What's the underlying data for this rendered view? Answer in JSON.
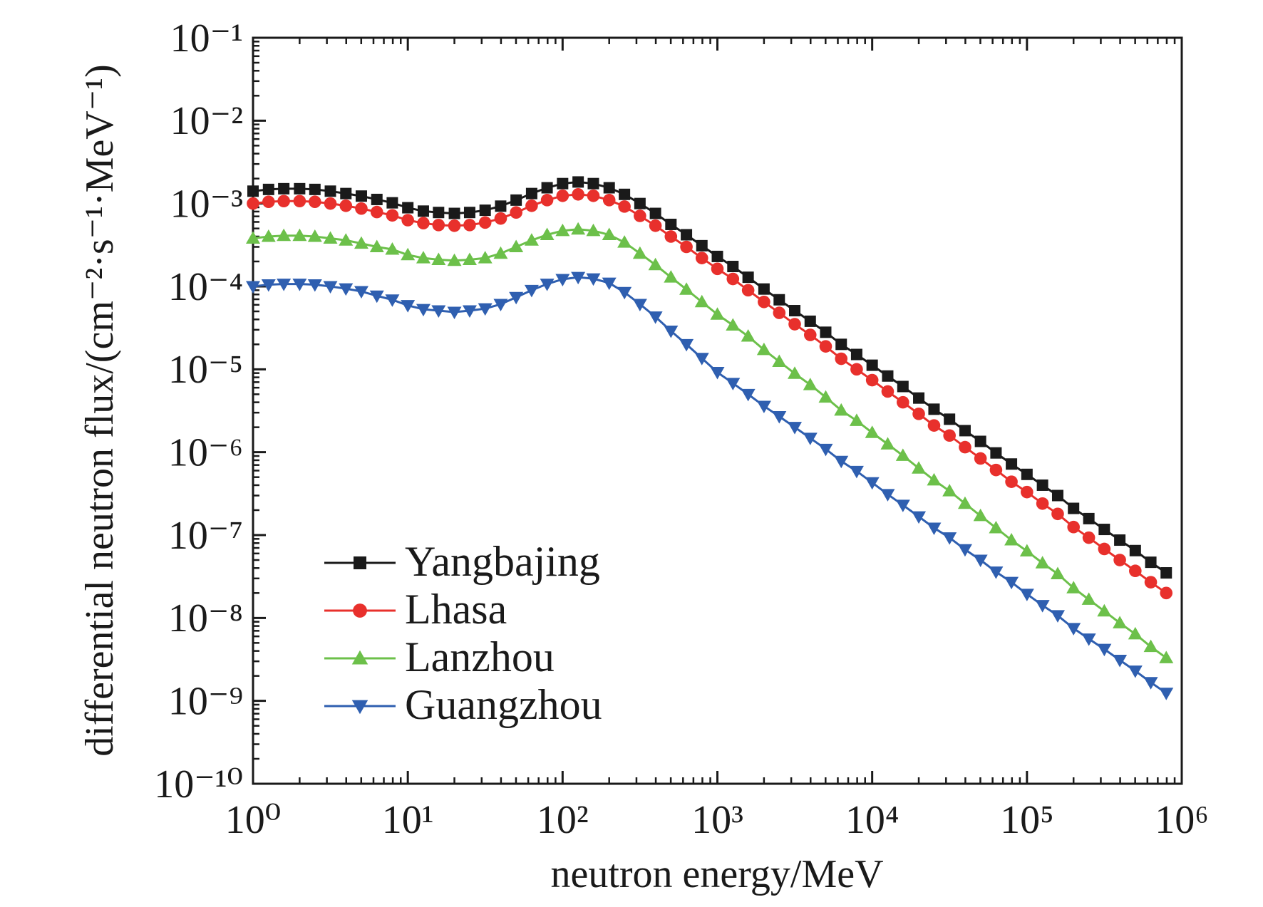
{
  "chart_data": {
    "type": "line",
    "x_label": "neutron energy/MeV",
    "y_label": "differential neutron flux/(cm⁻²·s⁻¹·MeV⁻¹)",
    "log_x": true,
    "log_y": true,
    "grid": false,
    "legend": "lower left",
    "xlim": [
      1,
      1000000
    ],
    "xticks": [
      {
        "value": 1,
        "label": "10⁰"
      },
      {
        "value": 10,
        "label": "10¹"
      },
      {
        "value": 100,
        "label": "10²"
      },
      {
        "value": 1000,
        "label": "10³"
      },
      {
        "value": 10000,
        "label": "10⁴"
      },
      {
        "value": 100000,
        "label": "10⁵"
      },
      {
        "value": 1000000,
        "label": "10⁶"
      }
    ],
    "ylim": [
      1e-10,
      0.1
    ],
    "yticks": [
      {
        "value": 1e-10,
        "label": "10⁻¹⁰"
      },
      {
        "value": 1e-09,
        "label": "10⁻⁹"
      },
      {
        "value": 1e-08,
        "label": "10⁻⁸"
      },
      {
        "value": 1e-07,
        "label": "10⁻⁷"
      },
      {
        "value": 1e-06,
        "label": "10⁻⁶"
      },
      {
        "value": 1e-05,
        "label": "10⁻⁵"
      },
      {
        "value": 0.0001,
        "label": "10⁻⁴"
      },
      {
        "value": 0.001,
        "label": "10⁻³"
      },
      {
        "value": 0.01,
        "label": "10⁻²"
      },
      {
        "value": 0.1,
        "label": "10⁻¹"
      }
    ],
    "x": [
      1,
      1.26,
      1.58,
      2,
      2.51,
      3.16,
      3.98,
      5.01,
      6.31,
      7.94,
      10,
      12.6,
      15.8,
      20,
      25.1,
      31.6,
      39.8,
      50.1,
      63.1,
      79.4,
      100,
      126,
      158,
      200,
      251,
      316,
      398,
      501,
      631,
      794,
      1000,
      1260,
      1580,
      2000,
      2510,
      3160,
      3980,
      5010,
      6310,
      7940,
      10000,
      12600,
      15800,
      20000,
      25100,
      31600,
      39800,
      50100,
      63100,
      79400,
      100000,
      126000,
      158000,
      200000,
      251000,
      316000,
      398000,
      501000,
      631000,
      794000
    ],
    "series": [
      {
        "name": "Yangbajing",
        "color": "#1a1a1a",
        "marker": "square",
        "values": [
          0.00141,
          0.00148,
          0.00151,
          0.00151,
          0.00148,
          0.00141,
          0.00132,
          0.00123,
          0.00112,
          0.00102,
          0.00089,
          0.00081,
          0.00078,
          0.00076,
          0.00078,
          0.00083,
          0.00093,
          0.0011,
          0.00132,
          0.00155,
          0.00174,
          0.00182,
          0.00174,
          0.00155,
          0.00129,
          0.001,
          0.00076,
          0.00056,
          0.00042,
          0.00031,
          0.00023,
          0.000174,
          0.000129,
          9.3e-05,
          6.9e-05,
          5.1e-05,
          3.8e-05,
          2.8e-05,
          2e-05,
          1.51e-05,
          1.12e-05,
          8.3e-06,
          6.2e-06,
          4.5e-06,
          3.3e-06,
          2.5e-06,
          1.82e-06,
          1.35e-06,
          9.8e-07,
          7.2e-07,
          5.4e-07,
          4e-07,
          3e-07,
          2.1e-07,
          1.58e-07,
          1.17e-07,
          8.7e-08,
          6.5e-08,
          4.7e-08,
          3.5e-08
        ]
      },
      {
        "name": "Lhasa",
        "color": "#e8302c",
        "marker": "circle",
        "values": [
          0.001,
          0.00105,
          0.00107,
          0.00107,
          0.00105,
          0.001,
          0.00094,
          0.00087,
          0.00079,
          0.00072,
          0.00063,
          0.00058,
          0.00055,
          0.00054,
          0.00055,
          0.00059,
          0.00066,
          0.00078,
          0.00094,
          0.0011,
          0.00124,
          0.00129,
          0.00124,
          0.0011,
          0.00092,
          0.00071,
          0.00054,
          0.0004,
          0.0003,
          0.00022,
          0.000163,
          0.000123,
          9e-05,
          6.5e-05,
          4.8e-05,
          3.5e-05,
          2.6e-05,
          1.89e-05,
          1.34e-05,
          1e-05,
          7.4e-06,
          5.4e-06,
          4e-06,
          2.9e-06,
          2.1e-06,
          1.59e-06,
          1.15e-06,
          8.4e-07,
          6.1e-07,
          4.4e-07,
          3.3e-07,
          2.4e-07,
          1.8e-07,
          1.25e-07,
          9.3e-08,
          6.8e-08,
          5e-08,
          3.7e-08,
          2.7e-08,
          2e-08
        ]
      },
      {
        "name": "Lanzhou",
        "color": "#6cc04a",
        "marker": "triangle-up",
        "values": [
          0.00038,
          0.0004,
          0.00041,
          0.00041,
          0.0004,
          0.00038,
          0.00036,
          0.00033,
          0.0003,
          0.00028,
          0.00024,
          0.00022,
          0.00021,
          0.000205,
          0.00021,
          0.00022,
          0.00025,
          0.0003,
          0.00036,
          0.00042,
          0.00047,
          0.00049,
          0.00047,
          0.00042,
          0.00034,
          0.00025,
          0.000182,
          0.000129,
          9.2e-05,
          6.5e-05,
          4.6e-05,
          3.4e-05,
          2.5e-05,
          1.72e-05,
          1.24e-05,
          8.9e-06,
          6.5e-06,
          4.6e-06,
          3.2e-06,
          2.4e-06,
          1.72e-06,
          1.25e-06,
          9.1e-07,
          6.4e-07,
          4.6e-07,
          3.4e-07,
          2.4e-07,
          1.71e-07,
          1.22e-07,
          8.7e-08,
          6.4e-08,
          4.6e-08,
          3.4e-08,
          2.3e-08,
          1.67e-08,
          1.21e-08,
          8.7e-09,
          6.4e-09,
          4.5e-09,
          3.3e-09
        ]
      },
      {
        "name": "Guangzhou",
        "color": "#2f5fb0",
        "marker": "triangle-down",
        "values": [
          0.0001,
          0.000105,
          0.000107,
          0.000107,
          0.000105,
          0.0001,
          9.4e-05,
          8.7e-05,
          7.7e-05,
          6.9e-05,
          5.9e-05,
          5.3e-05,
          5.1e-05,
          4.9e-05,
          5.1e-05,
          5.4e-05,
          6.1e-05,
          7.4e-05,
          9e-05,
          0.000107,
          0.000122,
          0.000129,
          0.000124,
          0.00011,
          8.5e-05,
          6.1e-05,
          4.3e-05,
          2.9e-05,
          2e-05,
          1.36e-05,
          9.2e-06,
          6.8e-06,
          5e-06,
          3.6e-06,
          2.7e-06,
          2e-06,
          1.48e-06,
          1.09e-06,
          7.8e-07,
          5.9e-07,
          4.3e-07,
          3.1e-07,
          2.3e-07,
          1.67e-07,
          1.22e-07,
          9.3e-08,
          6.7e-08,
          5e-08,
          3.6e-08,
          2.7e-08,
          1.94e-08,
          1.42e-08,
          1.07e-08,
          7.5e-09,
          5.6e-09,
          4.2e-09,
          3.1e-09,
          2.3e-09,
          1.67e-09,
          1.24e-09
        ]
      }
    ]
  }
}
